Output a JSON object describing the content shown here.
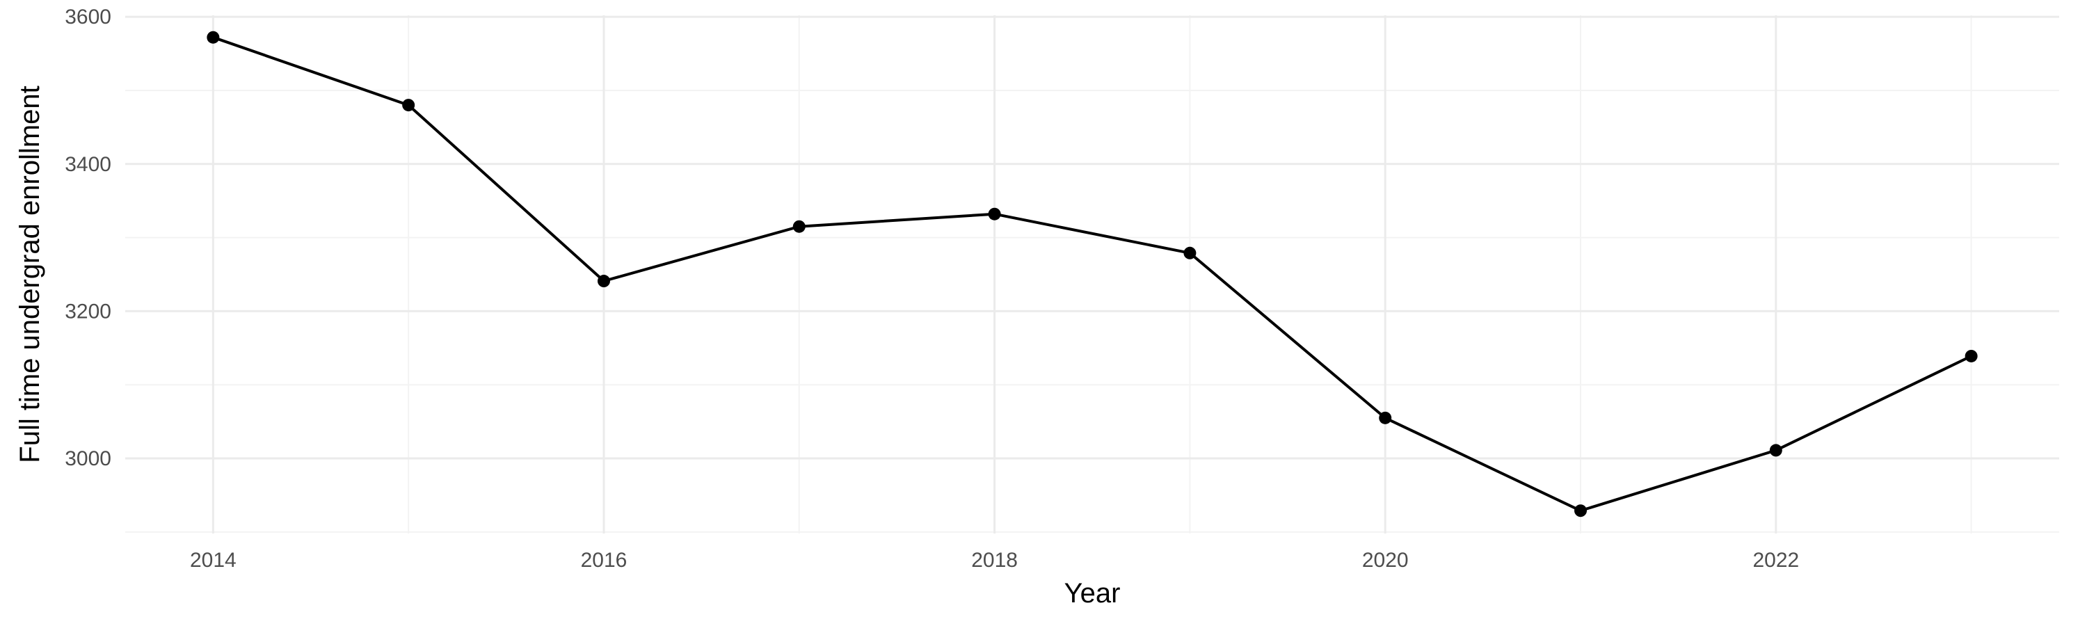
{
  "chart_data": {
    "type": "line",
    "title": "",
    "xlabel": "Year",
    "ylabel": "Full time undergrad enrollment",
    "x": [
      2014,
      2015,
      2016,
      2017,
      2018,
      2019,
      2020,
      2021,
      2022,
      2023
    ],
    "series": [
      {
        "values": [
          3572,
          3480,
          3241,
          3315,
          3332,
          3279,
          3055,
          2929,
          3011,
          3139
        ]
      }
    ],
    "xlim": [
      2013.55,
      2023.45
    ],
    "ylim": [
      2898,
      3602
    ],
    "x_ticks": [
      2014,
      2016,
      2018,
      2020,
      2022
    ],
    "x_tick_labels": [
      "2014",
      "2016",
      "2018",
      "2020",
      "2022"
    ],
    "y_ticks": [
      3000,
      3200,
      3400,
      3600
    ],
    "y_tick_labels": [
      "3000",
      "3200",
      "3400",
      "3600"
    ],
    "grid": true,
    "legend": "none",
    "colors": {
      "line": "#000000",
      "point": "#000000",
      "grid_major": "#ebebeb",
      "grid_minor": "#f3f3f3",
      "tick_text": "#4d4d4d",
      "axis_title": "#000000",
      "background": "#ffffff"
    }
  }
}
